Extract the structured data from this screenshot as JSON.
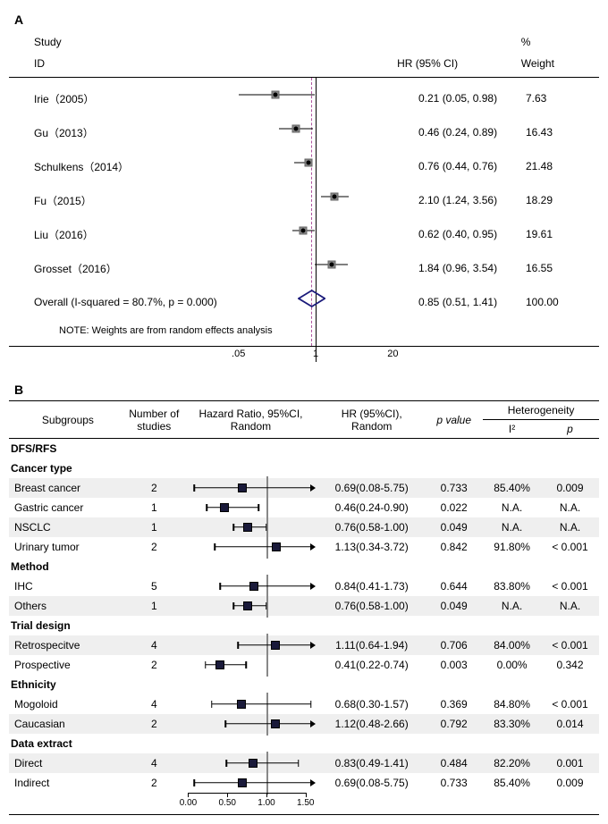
{
  "panelA": {
    "label": "A",
    "header": {
      "study": "Study",
      "id": "ID",
      "hr": "HR (95% CI)",
      "pct": "%",
      "wt": "Weight"
    },
    "log_min": 0.037,
    "log_max": 27,
    "ref": 1.0,
    "overall_center": 0.85,
    "ticks": [
      0.05,
      1,
      20
    ],
    "tick_labels": [
      ".05",
      "1",
      "20"
    ],
    "rows": [
      {
        "label": "Irie（2005）",
        "hr": "0.21 (0.05, 0.98)",
        "wt": "7.63",
        "pt": 0.21,
        "lo": 0.05,
        "hi": 0.98
      },
      {
        "label": "Gu（2013）",
        "hr": "0.46 (0.24, 0.89)",
        "wt": "16.43",
        "pt": 0.46,
        "lo": 0.24,
        "hi": 0.89
      },
      {
        "label": "Schulkens（2014）",
        "hr": "0.76 (0.44, 0.76)",
        "wt": "21.48",
        "pt": 0.76,
        "lo": 0.44,
        "hi": 0.76
      },
      {
        "label": "Fu（2015）",
        "hr": "2.10 (1.24, 3.56)",
        "wt": "18.29",
        "pt": 2.1,
        "lo": 1.24,
        "hi": 3.56
      },
      {
        "label": "Liu（2016）",
        "hr": "0.62 (0.40, 0.95)",
        "wt": "19.61",
        "pt": 0.62,
        "lo": 0.4,
        "hi": 0.95
      },
      {
        "label": "Grosset（2016）",
        "hr": "1.84 (0.96, 3.54)",
        "wt": "16.55",
        "pt": 1.84,
        "lo": 0.96,
        "hi": 3.54
      }
    ],
    "overall": {
      "label": "Overall  (I-squared = 80.7%, p = 0.000)",
      "hr": "0.85 (0.51, 1.41)",
      "wt": "100.00",
      "pt": 0.85,
      "lo": 0.51,
      "hi": 1.41
    },
    "note": "NOTE: Weights are from random effects analysis"
  },
  "panelB": {
    "label": "B",
    "header": {
      "subgroups": "Subgroups",
      "n": "Number of studies",
      "plot": "Hazard Ratio, 95%CI, Random",
      "hr": "HR (95%CI), Random",
      "p": "p  value",
      "het": "Heterogeneity",
      "i2": "I²",
      "hp": "p"
    },
    "xmin": 0.0,
    "xmax": 1.6,
    "ref": 1.0,
    "ticks": [
      0.0,
      0.5,
      1.0,
      1.5
    ],
    "tick_labels": [
      "0.00",
      "0.50",
      "1.00",
      "1.50"
    ],
    "rows": [
      {
        "type": "section",
        "label": "DFS/RFS"
      },
      {
        "type": "section",
        "label": "Cancer type"
      },
      {
        "type": "data",
        "shade": true,
        "label": "Breast cancer",
        "n": "2",
        "hr": "0.69(0.08-5.75)",
        "p": "0.733",
        "i2": "85.40%",
        "hp": "0.009",
        "pt": 0.69,
        "lo": 0.08,
        "hi": 5.75
      },
      {
        "type": "data",
        "shade": false,
        "label": "Gastric cancer",
        "n": "1",
        "hr": "0.46(0.24-0.90)",
        "p": "0.022",
        "i2": "N.A.",
        "hp": "N.A.",
        "pt": 0.46,
        "lo": 0.24,
        "hi": 0.9
      },
      {
        "type": "data",
        "shade": true,
        "label": "NSCLC",
        "n": "1",
        "hr": "0.76(0.58-1.00)",
        "p": "0.049",
        "i2": "N.A.",
        "hp": "N.A.",
        "pt": 0.76,
        "lo": 0.58,
        "hi": 1.0
      },
      {
        "type": "data",
        "shade": false,
        "label": "Urinary tumor",
        "n": "2",
        "hr": "1.13(0.34-3.72)",
        "p": "0.842",
        "i2": "91.80%",
        "hp": "< 0.001",
        "pt": 1.13,
        "lo": 0.34,
        "hi": 3.72
      },
      {
        "type": "section",
        "label": "Method"
      },
      {
        "type": "data",
        "shade": false,
        "label": "IHC",
        "n": "5",
        "hr": "0.84(0.41-1.73)",
        "p": "0.644",
        "i2": "83.80%",
        "hp": "< 0.001",
        "pt": 0.84,
        "lo": 0.41,
        "hi": 1.73
      },
      {
        "type": "data",
        "shade": true,
        "label": "Others",
        "n": "1",
        "hr": "0.76(0.58-1.00)",
        "p": "0.049",
        "i2": "N.A.",
        "hp": "N.A.",
        "pt": 0.76,
        "lo": 0.58,
        "hi": 1.0
      },
      {
        "type": "section",
        "label": "Trial design"
      },
      {
        "type": "data",
        "shade": true,
        "label": "Retrospecitve",
        "n": "4",
        "hr": "1.11(0.64-1.94)",
        "p": "0.706",
        "i2": "84.00%",
        "hp": "< 0.001",
        "pt": 1.11,
        "lo": 0.64,
        "hi": 1.94
      },
      {
        "type": "data",
        "shade": false,
        "label": "Prospective",
        "n": "2",
        "hr": "0.41(0.22-0.74)",
        "p": "0.003",
        "i2": "0.00%",
        "hp": "0.342",
        "pt": 0.41,
        "lo": 0.22,
        "hi": 0.74
      },
      {
        "type": "section",
        "label": "Ethnicity"
      },
      {
        "type": "data",
        "shade": false,
        "label": "Mogoloid",
        "n": "4",
        "hr": "0.68(0.30-1.57)",
        "p": "0.369",
        "i2": "84.80%",
        "hp": "< 0.001",
        "pt": 0.68,
        "lo": 0.3,
        "hi": 1.57
      },
      {
        "type": "data",
        "shade": true,
        "label": "Caucasian",
        "n": "2",
        "hr": "1.12(0.48-2.66)",
        "p": "0.792",
        "i2": "83.30%",
        "hp": "0.014",
        "pt": 1.12,
        "lo": 0.48,
        "hi": 2.66
      },
      {
        "type": "section",
        "label": "Data extract"
      },
      {
        "type": "data",
        "shade": true,
        "label": "Direct",
        "n": "4",
        "hr": "0.83(0.49-1.41)",
        "p": "0.484",
        "i2": "82.20%",
        "hp": "0.001",
        "pt": 0.83,
        "lo": 0.49,
        "hi": 1.41
      },
      {
        "type": "data",
        "shade": false,
        "label": "Indirect",
        "n": "2",
        "hr": "0.69(0.08-5.75)",
        "p": "0.733",
        "i2": "85.40%",
        "hp": "0.009",
        "pt": 0.69,
        "lo": 0.08,
        "hi": 5.75
      }
    ]
  }
}
